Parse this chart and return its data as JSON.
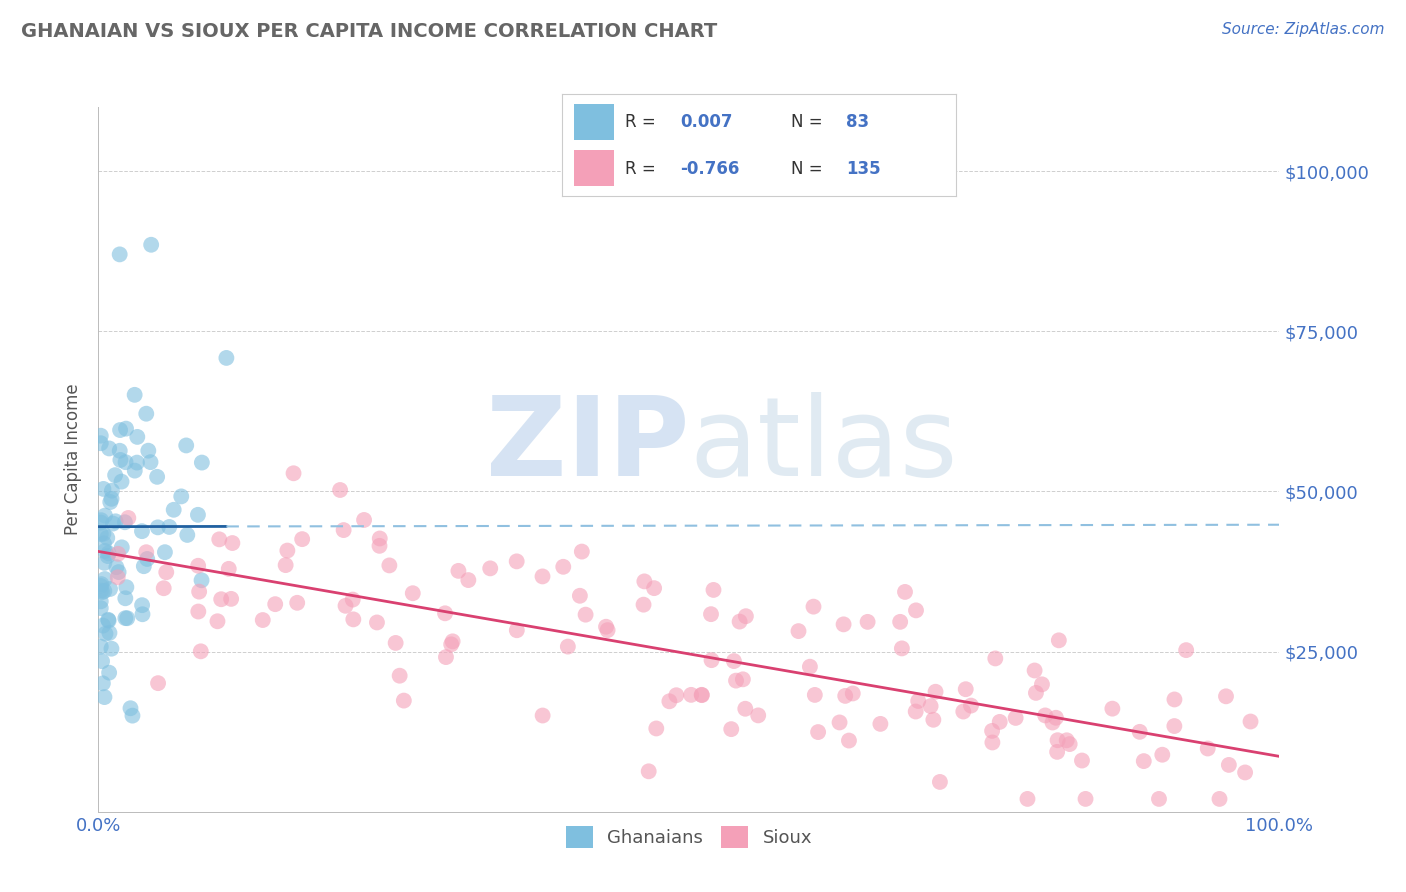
{
  "title": "GHANAIAN VS SIOUX PER CAPITA INCOME CORRELATION CHART",
  "source": "Source: ZipAtlas.com",
  "ylabel": "Per Capita Income",
  "xlim": [
    0.0,
    1.0
  ],
  "ylim": [
    0,
    110000
  ],
  "yticks": [
    0,
    25000,
    50000,
    75000,
    100000
  ],
  "ytick_labels": [
    "",
    "$25,000",
    "$50,000",
    "$75,000",
    "$100,000"
  ],
  "xtick_labels": [
    "0.0%",
    "100.0%"
  ],
  "legend_R1": "0.007",
  "legend_N1": "83",
  "legend_R2": "-0.766",
  "legend_N2": "135",
  "blue_color": "#7fbfdf",
  "pink_color": "#f4a0b8",
  "blue_line_color": "#2060a0",
  "pink_line_color": "#d94070",
  "blue_line_dash_color": "#90c0e0",
  "title_color": "#666666",
  "axis_label_color": "#4472C4",
  "background_color": "#ffffff",
  "grid_color": "#bbbbbb",
  "blue_scatter_seed": 42,
  "pink_scatter_seed": 99
}
